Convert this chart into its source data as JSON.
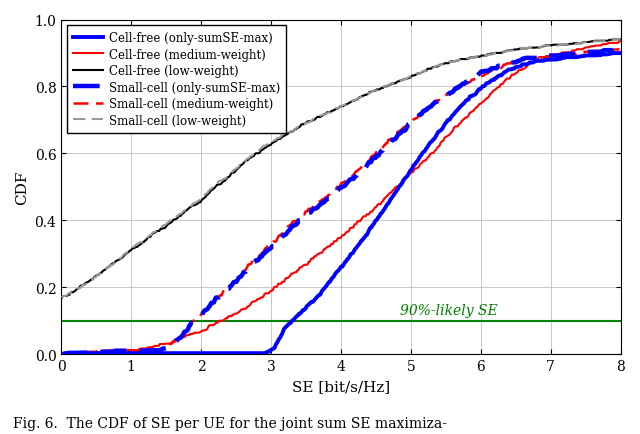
{
  "xlabel": "SE [bit/s/Hz]",
  "ylabel": "CDF",
  "xlim": [
    0,
    8
  ],
  "ylim": [
    0,
    1
  ],
  "xticks": [
    0,
    1,
    2,
    3,
    4,
    5,
    6,
    7,
    8
  ],
  "yticks": [
    0,
    0.2,
    0.4,
    0.6,
    0.8,
    1
  ],
  "hline_y": 0.1,
  "hline_color": "#008000",
  "hline_label": "90%-likely SE",
  "caption": "Fig. 6.  The CDF of SE per UE for the joint sum SE maximiza-",
  "legend_entries": [
    "Cell-free (only-sumSE-max)",
    "Cell-free (medium-weight)",
    "Cell-free (low-weight)",
    "Small-cell (only-sumSE-max)",
    "Small-cell (medium-weight)",
    "Small-cell (low-weight)"
  ],
  "cf_sumse_pts": [
    [
      0,
      0.0
    ],
    [
      2.9,
      0.0
    ],
    [
      3.05,
      0.02
    ],
    [
      3.2,
      0.08
    ],
    [
      3.4,
      0.12
    ],
    [
      3.7,
      0.18
    ],
    [
      4.0,
      0.26
    ],
    [
      4.3,
      0.34
    ],
    [
      4.6,
      0.43
    ],
    [
      4.9,
      0.52
    ],
    [
      5.2,
      0.61
    ],
    [
      5.5,
      0.69
    ],
    [
      5.8,
      0.76
    ],
    [
      6.1,
      0.81
    ],
    [
      6.4,
      0.85
    ],
    [
      6.7,
      0.87
    ],
    [
      7.0,
      0.88
    ],
    [
      7.5,
      0.89
    ],
    [
      8.0,
      0.9
    ]
  ],
  "cf_medium_pts": [
    [
      0,
      0.0
    ],
    [
      0.5,
      0.005
    ],
    [
      1.0,
      0.01
    ],
    [
      1.5,
      0.03
    ],
    [
      2.0,
      0.07
    ],
    [
      2.5,
      0.12
    ],
    [
      3.0,
      0.19
    ],
    [
      3.5,
      0.27
    ],
    [
      4.0,
      0.35
    ],
    [
      4.5,
      0.44
    ],
    [
      5.0,
      0.54
    ],
    [
      5.3,
      0.6
    ],
    [
      5.6,
      0.67
    ],
    [
      5.9,
      0.73
    ],
    [
      6.2,
      0.79
    ],
    [
      6.5,
      0.84
    ],
    [
      6.8,
      0.88
    ],
    [
      7.2,
      0.9
    ],
    [
      7.6,
      0.92
    ],
    [
      8.0,
      0.93
    ]
  ],
  "cf_low_pts": [
    [
      0,
      0.17
    ],
    [
      0.2,
      0.19
    ],
    [
      0.4,
      0.22
    ],
    [
      0.6,
      0.25
    ],
    [
      0.8,
      0.28
    ],
    [
      1.0,
      0.31
    ],
    [
      1.2,
      0.34
    ],
    [
      1.4,
      0.37
    ],
    [
      1.6,
      0.4
    ],
    [
      1.8,
      0.43
    ],
    [
      2.0,
      0.46
    ],
    [
      2.2,
      0.5
    ],
    [
      2.4,
      0.53
    ],
    [
      2.6,
      0.57
    ],
    [
      2.8,
      0.6
    ],
    [
      3.0,
      0.63
    ],
    [
      3.5,
      0.69
    ],
    [
      4.0,
      0.74
    ],
    [
      4.5,
      0.79
    ],
    [
      5.0,
      0.83
    ],
    [
      5.5,
      0.87
    ],
    [
      6.0,
      0.89
    ],
    [
      6.5,
      0.91
    ],
    [
      7.0,
      0.92
    ],
    [
      7.5,
      0.93
    ],
    [
      8.0,
      0.94
    ]
  ],
  "sc_sumse_pts": [
    [
      0,
      0.0
    ],
    [
      1.4,
      0.01
    ],
    [
      1.7,
      0.05
    ],
    [
      1.9,
      0.1
    ],
    [
      2.1,
      0.14
    ],
    [
      2.3,
      0.18
    ],
    [
      2.5,
      0.22
    ],
    [
      2.7,
      0.26
    ],
    [
      2.9,
      0.3
    ],
    [
      3.1,
      0.34
    ],
    [
      3.3,
      0.38
    ],
    [
      3.6,
      0.43
    ],
    [
      3.9,
      0.48
    ],
    [
      4.2,
      0.53
    ],
    [
      4.5,
      0.59
    ],
    [
      4.8,
      0.65
    ],
    [
      5.1,
      0.71
    ],
    [
      5.4,
      0.76
    ],
    [
      5.7,
      0.8
    ],
    [
      6.0,
      0.84
    ],
    [
      6.3,
      0.86
    ],
    [
      6.6,
      0.88
    ],
    [
      7.0,
      0.89
    ],
    [
      7.5,
      0.9
    ],
    [
      8.0,
      0.91
    ]
  ],
  "sc_medium_pts": [
    [
      0,
      0.0
    ],
    [
      1.4,
      0.01
    ],
    [
      1.7,
      0.05
    ],
    [
      1.9,
      0.1
    ],
    [
      2.1,
      0.14
    ],
    [
      2.3,
      0.18
    ],
    [
      2.5,
      0.22
    ],
    [
      2.7,
      0.27
    ],
    [
      2.9,
      0.31
    ],
    [
      3.1,
      0.35
    ],
    [
      3.3,
      0.39
    ],
    [
      3.6,
      0.44
    ],
    [
      3.9,
      0.49
    ],
    [
      4.2,
      0.54
    ],
    [
      4.5,
      0.6
    ],
    [
      4.8,
      0.66
    ],
    [
      5.1,
      0.71
    ],
    [
      5.4,
      0.76
    ],
    [
      5.7,
      0.8
    ],
    [
      6.0,
      0.83
    ],
    [
      6.3,
      0.86
    ],
    [
      6.6,
      0.88
    ],
    [
      7.0,
      0.89
    ],
    [
      7.5,
      0.9
    ],
    [
      8.0,
      0.91
    ]
  ],
  "sc_low_pts": [
    [
      0,
      0.17
    ],
    [
      0.2,
      0.19
    ],
    [
      0.4,
      0.22
    ],
    [
      0.6,
      0.25
    ],
    [
      0.8,
      0.28
    ],
    [
      1.0,
      0.315
    ],
    [
      1.2,
      0.345
    ],
    [
      1.4,
      0.375
    ],
    [
      1.6,
      0.405
    ],
    [
      1.8,
      0.435
    ],
    [
      2.0,
      0.465
    ],
    [
      2.2,
      0.505
    ],
    [
      2.4,
      0.535
    ],
    [
      2.6,
      0.575
    ],
    [
      2.8,
      0.605
    ],
    [
      3.0,
      0.635
    ],
    [
      3.5,
      0.69
    ],
    [
      4.0,
      0.74
    ],
    [
      4.5,
      0.79
    ],
    [
      5.0,
      0.83
    ],
    [
      5.5,
      0.87
    ],
    [
      6.0,
      0.89
    ],
    [
      6.5,
      0.91
    ],
    [
      7.0,
      0.92
    ],
    [
      7.5,
      0.93
    ],
    [
      8.0,
      0.94
    ]
  ],
  "colors": {
    "cf_sumse": "#0000FF",
    "cf_medium": "#FF0000",
    "cf_low": "#000000",
    "sc_sumse": "#0000FF",
    "sc_medium": "#FF0000",
    "sc_low": "#999999"
  },
  "lw_cf_sumse": 2.8,
  "lw_cf_medium": 1.5,
  "lw_cf_low": 1.5,
  "lw_sc_sumse": 3.2,
  "lw_sc_medium": 1.8,
  "lw_sc_low": 1.5,
  "figsize": [
    6.4,
    4.35
  ],
  "dpi": 100
}
